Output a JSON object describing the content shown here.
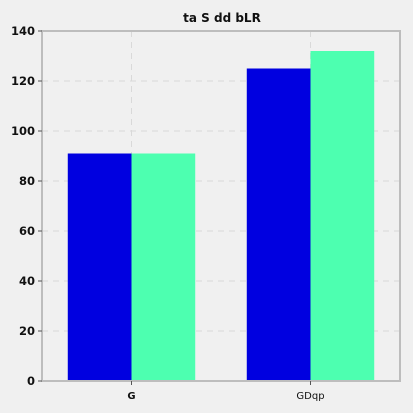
{
  "chart_data": {
    "type": "bar",
    "title": "ta S dd bLR",
    "xlabel": "",
    "ylabel": "",
    "categories": [
      "G",
      "GDqp"
    ],
    "category_bold": [
      true,
      false
    ],
    "series": [
      {
        "color": "#0000e0",
        "values": [
          91,
          125
        ]
      },
      {
        "color": "#4dffb0",
        "values": [
          91,
          132
        ]
      }
    ],
    "ylim": [
      0,
      140
    ],
    "yticks": [
      0,
      20,
      40,
      60,
      80,
      100,
      120,
      140
    ],
    "grid": true,
    "legend": "none"
  }
}
